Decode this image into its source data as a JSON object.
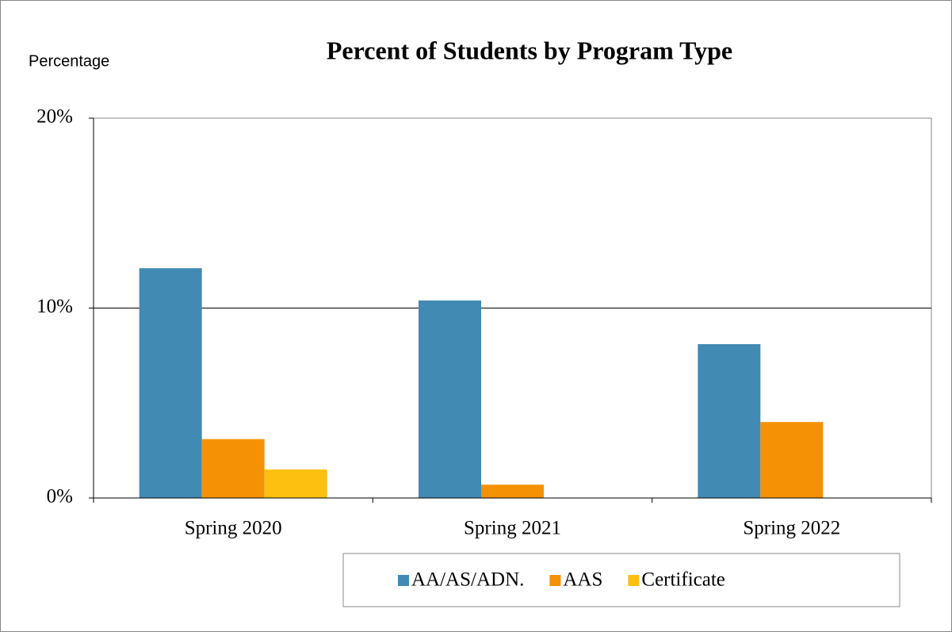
{
  "chart_data": {
    "type": "bar",
    "title": "Percent of Students by Program Type",
    "y_axis_label": "Percentage",
    "categories": [
      "Spring 2020",
      "Spring 2021",
      "Spring 2022"
    ],
    "series": [
      {
        "name": "AA/AS/ADN.",
        "color": "#418ab3",
        "values": [
          12.1,
          10.4,
          8.1
        ]
      },
      {
        "name": "AAS",
        "color": "#f59105",
        "values": [
          3.1,
          0.7,
          4.0
        ]
      },
      {
        "name": "Certificate",
        "color": "#fdc010",
        "values": [
          1.5,
          0,
          0
        ]
      }
    ],
    "ylim": [
      0,
      20
    ],
    "yticks": [
      {
        "value": 0,
        "label": "0%"
      },
      {
        "value": 10,
        "label": "10%"
      },
      {
        "value": 20,
        "label": "20%"
      }
    ],
    "grid": true,
    "legend": "bottom"
  }
}
